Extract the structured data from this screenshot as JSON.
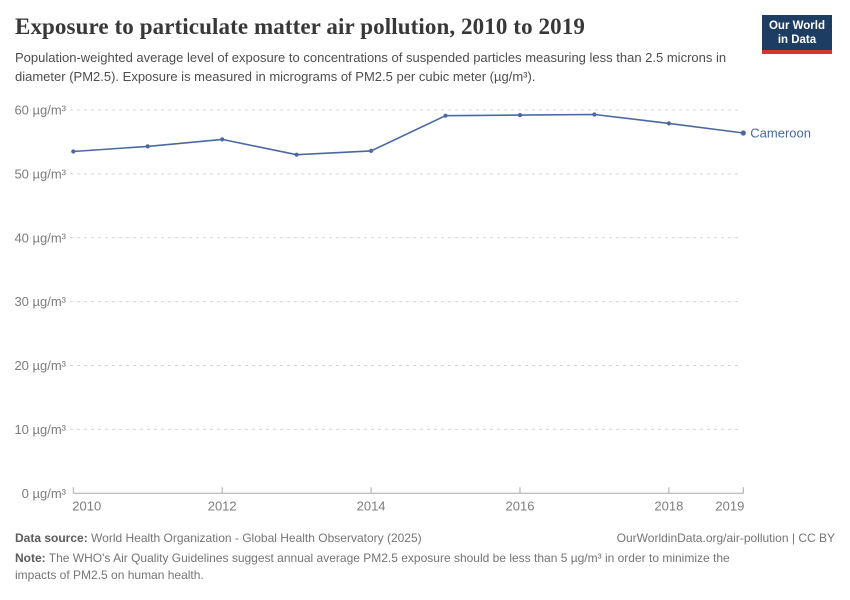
{
  "header": {
    "title": "Exposure to particulate matter air pollution, 2010 to 2019",
    "subtitle": "Population-weighted average level of exposure to concentrations of suspended particles measuring less than 2.5 microns in diameter (PM2.5). Exposure is measured in micrograms of PM2.5 per cubic meter (µg/m³).",
    "logo": {
      "line1": "Our World",
      "line2": "in Data",
      "bg_color": "#1d3d63",
      "accent_color": "#d7342a"
    }
  },
  "chart_data": {
    "type": "line",
    "title": "Exposure to particulate matter air pollution, 2010 to 2019",
    "x": [
      2010,
      2011,
      2012,
      2013,
      2014,
      2015,
      2016,
      2017,
      2018,
      2019
    ],
    "series": [
      {
        "name": "Cameroon",
        "color": "#4a69a3",
        "values": [
          53.5,
          54.3,
          55.4,
          53.0,
          53.6,
          59.1,
          59.2,
          59.3,
          57.9,
          56.4
        ]
      }
    ],
    "xlabel": "",
    "ylabel": "",
    "unit": "µg/m³",
    "ylim": [
      0,
      60
    ],
    "y_ticks": [
      0,
      10,
      20,
      30,
      40,
      50,
      60
    ],
    "x_ticks": [
      2010,
      2012,
      2014,
      2016,
      2018,
      2019
    ],
    "grid": "horizontal-dashed",
    "legend_position": "end-of-line-label",
    "grid_color": "#d4d4d4",
    "axis_color": "#a8a8a8",
    "tick_label_color": "#7d7d7d"
  },
  "footer": {
    "source_label": "Data source:",
    "source_text": "World Health Organization - Global Health Observatory (2025)",
    "link_text": "OurWorldinData.org/air-pollution | CC BY",
    "note_label": "Note:",
    "note_text": "The WHO's Air Quality Guidelines suggest annual average PM2.5 exposure should be less than 5 µg/m³ in order to minimize the impacts of PM2.5 on human health."
  }
}
